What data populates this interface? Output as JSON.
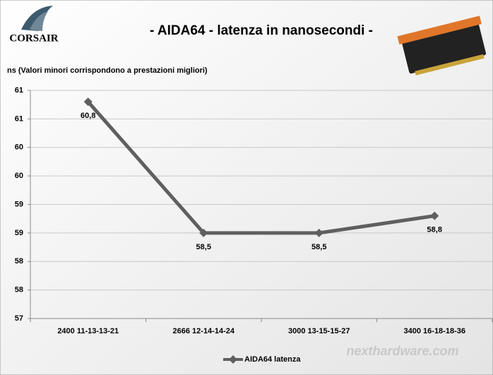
{
  "chart_data": {
    "type": "line",
    "title": "- AIDA64 - latenza in nanosecondi -",
    "y_label": "ns  (Valori minori corrispondono a prestazioni  migliori)",
    "logo": "CORSAIR",
    "watermark": "nexthardware.com",
    "categories": [
      "2400 11-13-13-21",
      "2666 12-14-14-24",
      "3000 13-15-15-27",
      "3400 16-18-18-36"
    ],
    "series": [
      {
        "name": "AIDA64 latenza",
        "color": "#5f5f5f",
        "values": [
          60.8,
          58.5,
          58.5,
          58.8
        ],
        "value_labels": [
          "60,8",
          "58,5",
          "58,5",
          "58,8"
        ]
      }
    ],
    "ylim": [
      57,
      61
    ],
    "yticks": [
      57,
      {
        "value": 57.5,
        "label": "58"
      },
      {
        "value": 58,
        "label": "58"
      },
      {
        "value": 58.5,
        "label": "59"
      },
      {
        "value": 59,
        "label": "59"
      },
      {
        "value": 59.5,
        "label": "60"
      },
      {
        "value": 60,
        "label": "60"
      },
      {
        "value": 60.5,
        "label": "61"
      },
      61
    ],
    "grid": true
  }
}
